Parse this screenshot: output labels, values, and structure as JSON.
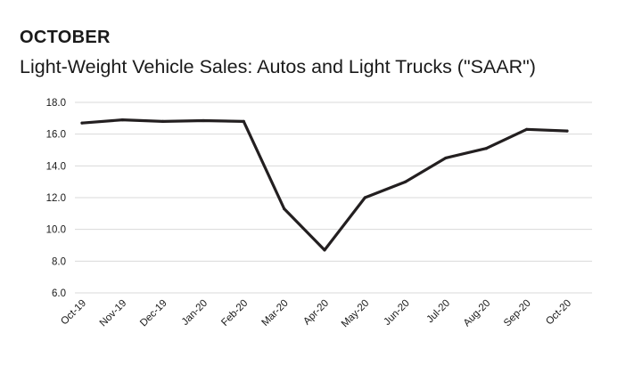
{
  "header": {
    "eyebrow": "OCTOBER",
    "title": "Light-Weight Vehicle Sales: Autos and Light Trucks (\"SAAR\")"
  },
  "chart_data": {
    "type": "line",
    "categories": [
      "Oct-19",
      "Nov-19",
      "Dec-19",
      "Jan-20",
      "Feb-20",
      "Mar-20",
      "Apr-20",
      "May-20",
      "Jun-20",
      "Jul-20",
      "Aug-20",
      "Sep-20",
      "Oct-20"
    ],
    "series": [
      {
        "values": [
          16.7,
          16.9,
          16.8,
          16.85,
          16.8,
          11.3,
          8.7,
          12.0,
          13.0,
          14.5,
          15.1,
          16.3,
          16.2
        ]
      }
    ],
    "yticks": [
      "6.0",
      "8.0",
      "10.0",
      "12.0",
      "14.0",
      "16.0",
      "18.0"
    ],
    "ylim": [
      6,
      18
    ],
    "grid": true,
    "legend": "none",
    "colors": {
      "line": "#231f20",
      "grid": "#d9d9d9",
      "text": "#1a1a1a"
    }
  }
}
